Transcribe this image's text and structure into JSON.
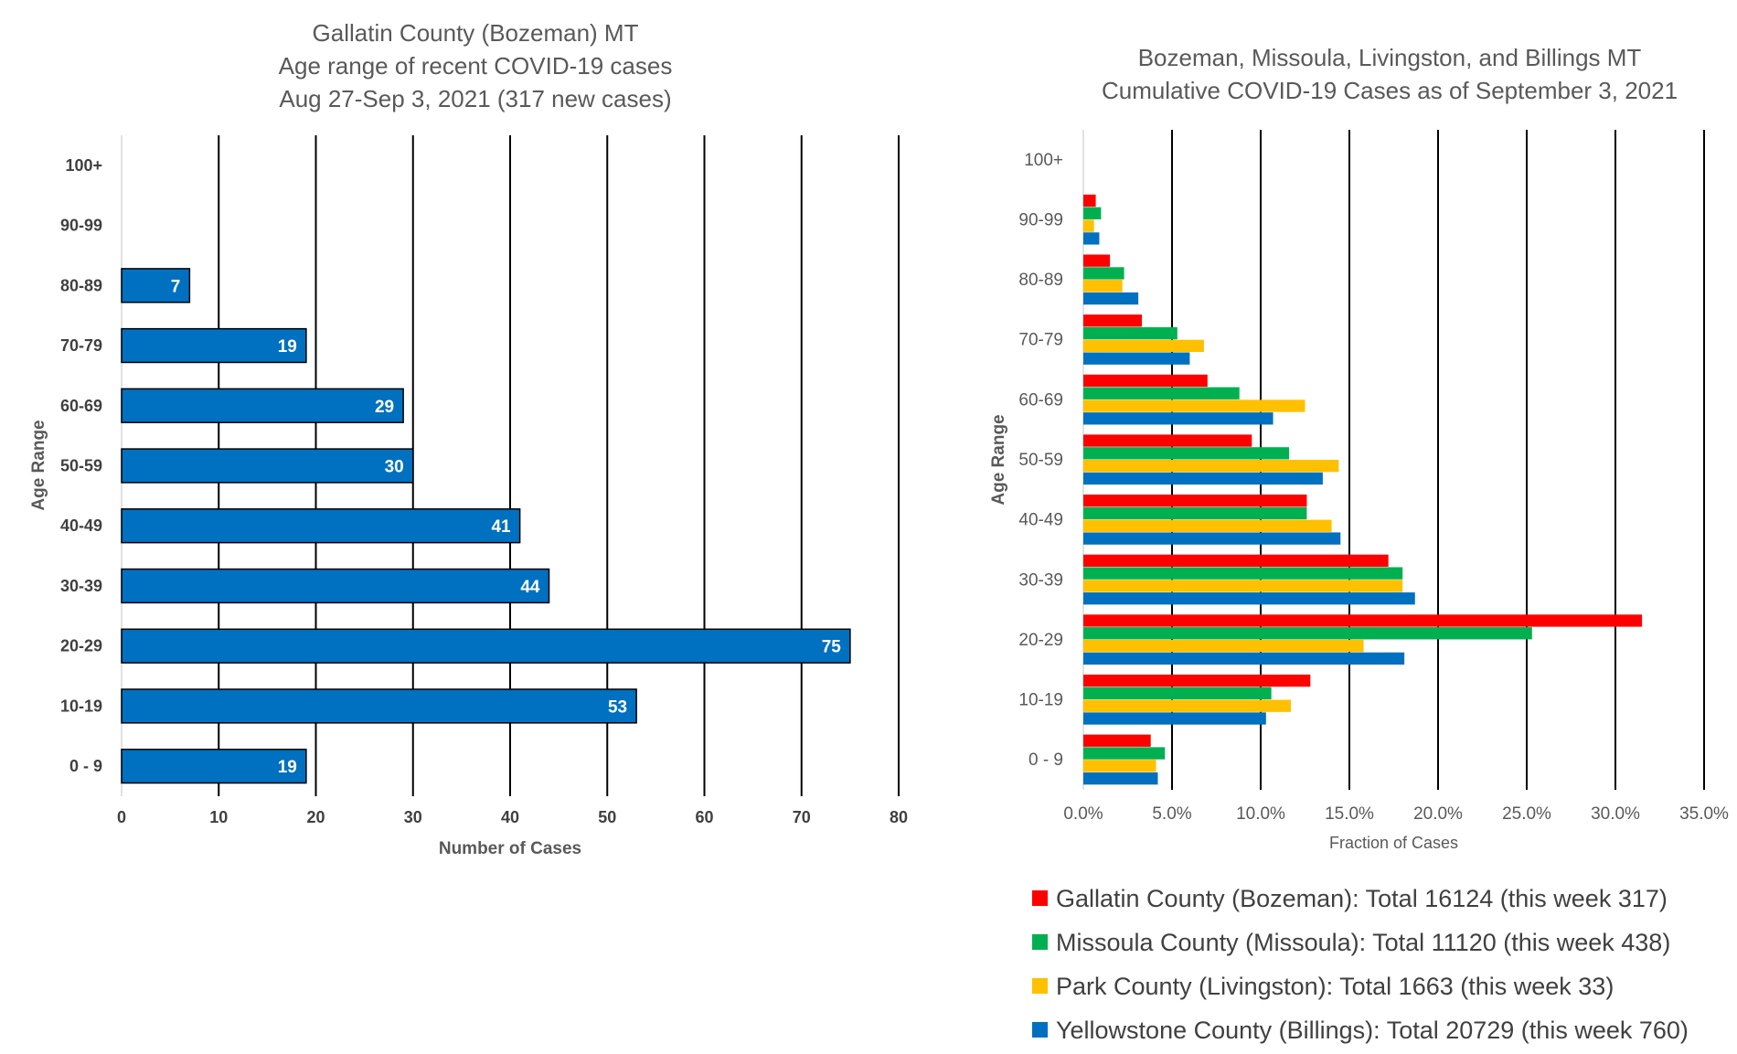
{
  "chart_data": [
    {
      "type": "bar",
      "orientation": "horizontal",
      "title_lines": [
        "Gallatin County (Bozeman) MT",
        "Age range of recent COVID-19 cases",
        "Aug 27-Sep 3, 2021 (317 new cases)"
      ],
      "categories": [
        "0 - 9",
        "10-19",
        "20-29",
        "30-39",
        "40-49",
        "50-59",
        "60-69",
        "70-79",
        "80-89",
        "90-99",
        "100+"
      ],
      "values": [
        19,
        53,
        75,
        44,
        41,
        30,
        29,
        19,
        7,
        null,
        null
      ],
      "data_labels": [
        "19",
        "53",
        "75",
        "44",
        "41",
        "30",
        "29",
        "19",
        "7",
        "",
        ""
      ],
      "xlabel": "Number of Cases",
      "ylabel": "Age Range",
      "xlim": [
        0,
        80
      ],
      "xticks": [
        "0",
        "10",
        "20",
        "30",
        "40",
        "50",
        "60",
        "70",
        "80"
      ],
      "grid": "vertical",
      "bar_color": "#0070C0"
    },
    {
      "type": "bar",
      "orientation": "horizontal",
      "title_lines": [
        "Bozeman, Missoula, Livingston, and Billings MT",
        "Cumulative COVID-19 Cases as of September 3, 2021"
      ],
      "categories": [
        "0 - 9",
        "10-19",
        "20-29",
        "30-39",
        "40-49",
        "50-59",
        "60-69",
        "70-79",
        "80-89",
        "90-99",
        "100+"
      ],
      "series": [
        {
          "name": "Gallatin County (Bozeman): Total 16124 (this week 317)",
          "color": "#FF0000",
          "values": [
            0.038,
            0.128,
            0.315,
            0.172,
            0.126,
            0.095,
            0.07,
            0.033,
            0.015,
            0.007,
            0.0
          ]
        },
        {
          "name": "Missoula County (Missoula): Total 11120 (this week 438)",
          "color": "#00B050",
          "values": [
            0.046,
            0.106,
            0.253,
            0.18,
            0.126,
            0.116,
            0.088,
            0.053,
            0.023,
            0.01,
            0.0
          ]
        },
        {
          "name": "Park County (Livingston): Total 1663 (this week 33)",
          "color": "#FFC000",
          "values": [
            0.041,
            0.117,
            0.158,
            0.18,
            0.14,
            0.144,
            0.125,
            0.068,
            0.022,
            0.006,
            0.0
          ]
        },
        {
          "name": "Yellowstone County (Billings): Total 20729 (this week 760)",
          "color": "#0070C0",
          "values": [
            0.042,
            0.103,
            0.181,
            0.187,
            0.145,
            0.135,
            0.107,
            0.06,
            0.031,
            0.009,
            0.0
          ]
        }
      ],
      "xlabel": "Fraction of Cases",
      "ylabel": "Age Range",
      "xlim": [
        0,
        0.35
      ],
      "xticks": [
        "0.0%",
        "5.0%",
        "10.0%",
        "15.0%",
        "20.0%",
        "25.0%",
        "30.0%",
        "35.0%"
      ],
      "grid": "vertical",
      "legend_position": "bottom"
    }
  ]
}
